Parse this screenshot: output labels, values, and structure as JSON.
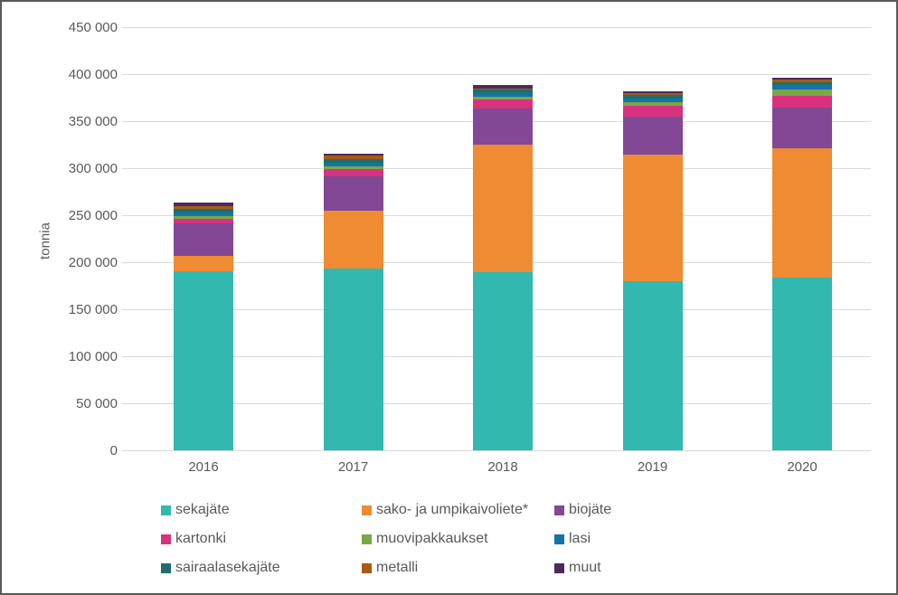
{
  "frame": {
    "background_color": "#ffffff",
    "border_color": "#595959"
  },
  "axis": {
    "text_color": "#595959",
    "gridline_color": "#d9d9d9"
  },
  "chart_data": {
    "type": "bar",
    "stacked": true,
    "title": "",
    "xlabel": "",
    "ylabel": "tonnia",
    "ylim": [
      0,
      450000
    ],
    "ytick_step": 50000,
    "ytick_labels": [
      "0",
      "50 000",
      "100 000",
      "150 000",
      "200 000",
      "250 000",
      "300 000",
      "350 000",
      "400 000",
      "450 000"
    ],
    "grid": true,
    "legend_position": "bottom",
    "categories": [
      "2016",
      "2017",
      "2018",
      "2019",
      "2020"
    ],
    "series": [
      {
        "name": "sekajäte",
        "color": "#33b8b0",
        "values": [
          190000,
          193000,
          189000,
          180000,
          184000
        ]
      },
      {
        "name": "sako- ja umpikaivoliete*",
        "color": "#ef8b33",
        "values": [
          17000,
          62000,
          136000,
          134000,
          137000
        ]
      },
      {
        "name": "biojäte",
        "color": "#824795",
        "values": [
          34000,
          36000,
          38000,
          41000,
          43000
        ]
      },
      {
        "name": "kartonki",
        "color": "#d8327e",
        "values": [
          5000,
          8000,
          10000,
          11000,
          13000
        ]
      },
      {
        "name": "muovipakkaukset",
        "color": "#7aa845",
        "values": [
          3000,
          3000,
          3000,
          4000,
          7000
        ]
      },
      {
        "name": "lasi",
        "color": "#1274ab",
        "values": [
          4000,
          4000,
          4000,
          4000,
          4000
        ]
      },
      {
        "name": "sairaalasekajäte",
        "color": "#1f6e6b",
        "values": [
          4000,
          4000,
          4000,
          4000,
          3000
        ]
      },
      {
        "name": "metalli",
        "color": "#a85b13",
        "values": [
          3000,
          3000,
          1000,
          2000,
          3000
        ]
      },
      {
        "name": "muut",
        "color": "#4d2a5e",
        "values": [
          3000,
          2000,
          3000,
          2000,
          2000
        ]
      }
    ]
  }
}
